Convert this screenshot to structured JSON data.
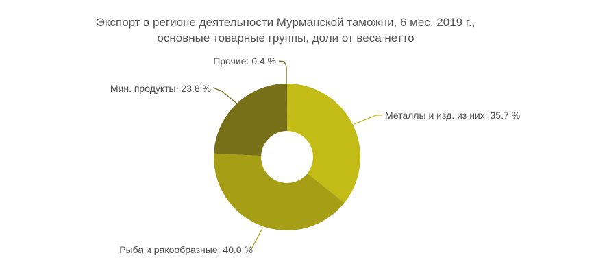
{
  "title": {
    "line1": "Экспорт в регионе деятельности Мурманской таможни, 6 мес. 2019 г.,",
    "line2": "основные товарные группы, доли от веса нетто"
  },
  "chart_data": {
    "type": "pie",
    "subtype": "donut",
    "title": "Экспорт в регионе деятельности Мурманской таможни, 6 мес. 2019 г., основные товарные группы, доли от веса нетто",
    "unit": "% от веса нетто",
    "start_angle_deg": 0,
    "direction": "clockwise",
    "legend": "none",
    "label_style": "callout-lines",
    "categories": [
      "Металлы и изд. из них",
      "Рыба и ракообразные",
      "Мин. продукты",
      "Прочие"
    ],
    "values": [
      35.7,
      40.0,
      23.8,
      0.4
    ],
    "slices": [
      {
        "label": "Металлы и изд. из них",
        "value": 35.7,
        "color": "#c4bc16",
        "callout": "Металлы и изд. из них: 35.7 %"
      },
      {
        "label": "Рыба и ракообразные",
        "value": 40.0,
        "color": "#a69e15",
        "callout": "Рыба и ракообразные: 40.0 %"
      },
      {
        "label": "Мин. продукты",
        "value": 23.8,
        "color": "#787018",
        "callout": "Мин. продукты: 23.8 %"
      },
      {
        "label": "Прочие",
        "value": 0.4,
        "color": "#6c6817",
        "callout": "Прочие: 0.4 %"
      }
    ]
  },
  "colors": {
    "background": "#ffffff",
    "title_text": "#555555",
    "label_text": "#4d4d4d"
  }
}
